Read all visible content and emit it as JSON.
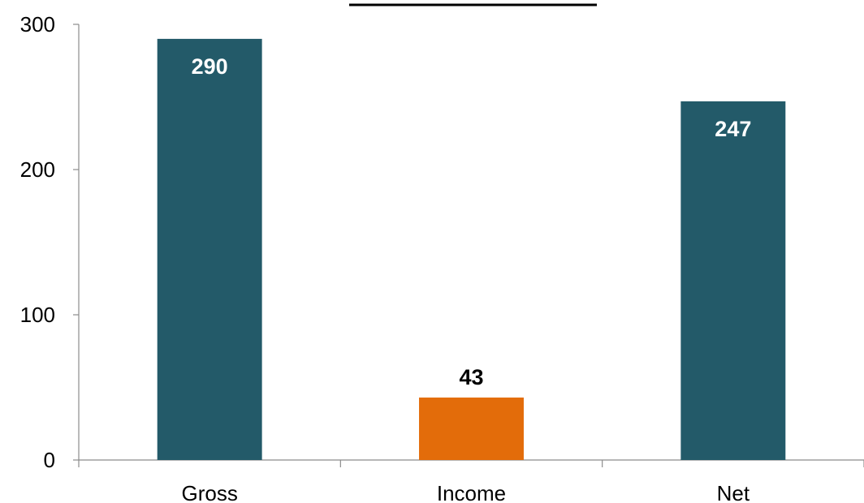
{
  "chart_data": {
    "type": "bar",
    "title": "",
    "xlabel": "",
    "ylabel": "",
    "categories": [
      "Gross",
      "Income",
      "Net"
    ],
    "values": [
      290,
      43,
      247
    ],
    "data_labels": [
      "290",
      "43",
      "247"
    ],
    "bar_colors": [
      "#235a69",
      "#e36c0a",
      "#235a69"
    ],
    "label_colors": [
      "#ffffff",
      "#000000",
      "#ffffff"
    ],
    "label_position": [
      "inside-top",
      "above",
      "inside-top"
    ],
    "ylim": [
      0,
      300
    ],
    "yticks": [
      0,
      100,
      200,
      300
    ],
    "ytick_labels": [
      "0",
      "100",
      "200",
      "300"
    ],
    "grid": false,
    "legend": "none"
  }
}
